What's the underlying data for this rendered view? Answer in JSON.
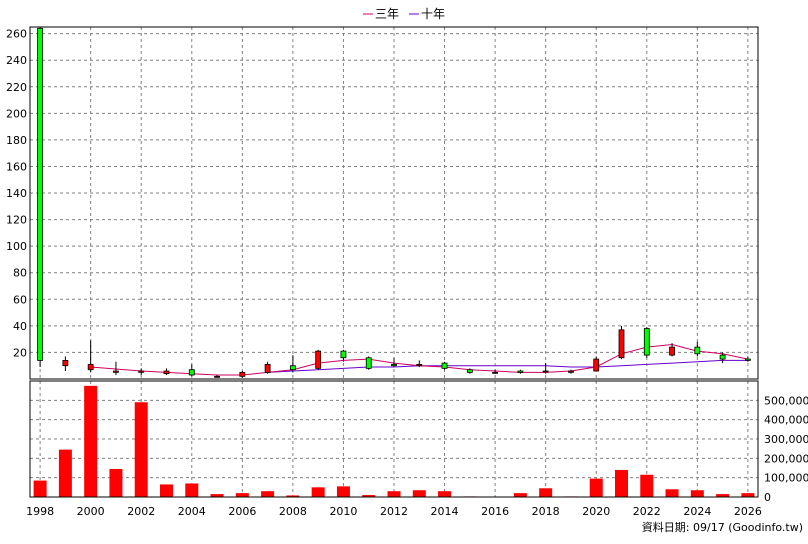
{
  "footer": "資料日期: 09/17  (Goodinfo.tw)",
  "chart_data": {
    "type": "candlestick+bar",
    "legend": [
      {
        "name": "三年",
        "color": "#cc0066"
      },
      {
        "name": "十年",
        "color": "#6600cc"
      }
    ],
    "x_ticks": [
      "1998",
      "2000",
      "2002",
      "2004",
      "2006",
      "2008",
      "2010",
      "2012",
      "2014",
      "2016",
      "2018",
      "2020",
      "2022",
      "2024",
      "2026"
    ],
    "price_axis": {
      "ylim": [
        0,
        265
      ],
      "ticks": [
        "20",
        "40",
        "60",
        "80",
        "100",
        "120",
        "140",
        "160",
        "180",
        "200",
        "220",
        "240",
        "260"
      ]
    },
    "volume_axis": {
      "ylim": [
        0,
        600000
      ],
      "ticks": [
        "0",
        "100,000",
        "200,000",
        "300,000",
        "400,000",
        "500,000"
      ]
    },
    "candles": [
      {
        "year": 1998,
        "open": 264,
        "close": 14,
        "high": 265,
        "low": 9
      },
      {
        "year": 1999,
        "open": 10,
        "close": 14,
        "high": 17,
        "low": 6
      },
      {
        "year": 2000,
        "open": 7,
        "close": 11,
        "high": 29,
        "low": 5
      },
      {
        "year": 2001,
        "open": 5,
        "close": 6,
        "high": 13,
        "low": 3
      },
      {
        "year": 2002,
        "open": 5,
        "close": 6,
        "high": 8,
        "low": 3
      },
      {
        "year": 2003,
        "open": 4,
        "close": 6,
        "high": 8,
        "low": 3
      },
      {
        "year": 2004,
        "open": 7,
        "close": 3,
        "high": 11,
        "low": 2
      },
      {
        "year": 2005,
        "open": 2,
        "close": 2,
        "high": 3,
        "low": 1
      },
      {
        "year": 2006,
        "open": 2,
        "close": 5,
        "high": 6,
        "low": 1
      },
      {
        "year": 2007,
        "open": 5,
        "close": 11,
        "high": 13,
        "low": 4
      },
      {
        "year": 2008,
        "open": 10,
        "close": 7,
        "high": 18,
        "low": 5
      },
      {
        "year": 2009,
        "open": 8,
        "close": 21,
        "high": 22,
        "low": 7
      },
      {
        "year": 2010,
        "open": 21,
        "close": 16,
        "high": 22,
        "low": 13
      },
      {
        "year": 2011,
        "open": 16,
        "close": 8,
        "high": 17,
        "low": 7
      },
      {
        "year": 2012,
        "open": 11,
        "close": 10,
        "high": 16,
        "low": 9
      },
      {
        "year": 2013,
        "open": 10,
        "close": 11,
        "high": 14,
        "low": 9
      },
      {
        "year": 2014,
        "open": 12,
        "close": 8,
        "high": 13,
        "low": 7
      },
      {
        "year": 2015,
        "open": 7,
        "close": 5,
        "high": 8,
        "low": 4
      },
      {
        "year": 2016,
        "open": 5,
        "close": 5,
        "high": 7,
        "low": 4
      },
      {
        "year": 2017,
        "open": 6,
        "close": 5,
        "high": 7,
        "low": 4
      },
      {
        "year": 2018,
        "open": 6,
        "close": 6,
        "high": 12,
        "low": 4
      },
      {
        "year": 2019,
        "open": 5,
        "close": 6,
        "high": 7,
        "low": 4
      },
      {
        "year": 2020,
        "open": 6,
        "close": 15,
        "high": 17,
        "low": 6
      },
      {
        "year": 2021,
        "open": 16,
        "close": 37,
        "high": 40,
        "low": 15
      },
      {
        "year": 2022,
        "open": 38,
        "close": 18,
        "high": 39,
        "low": 16
      },
      {
        "year": 2023,
        "open": 18,
        "close": 24,
        "high": 27,
        "low": 17
      },
      {
        "year": 2024,
        "open": 24,
        "close": 19,
        "high": 28,
        "low": 17
      },
      {
        "year": 2025,
        "open": 18,
        "close": 15,
        "high": 20,
        "low": 12
      },
      {
        "year": 2026,
        "open": 15,
        "close": 14,
        "high": 17,
        "low": 13
      }
    ],
    "ma3": [
      [
        2000,
        9
      ],
      [
        2002,
        6
      ],
      [
        2004,
        4
      ],
      [
        2005,
        3
      ],
      [
        2006,
        3
      ],
      [
        2007,
        5
      ],
      [
        2008,
        7
      ],
      [
        2009,
        12
      ],
      [
        2010,
        14
      ],
      [
        2011,
        15
      ],
      [
        2012,
        12
      ],
      [
        2013,
        10
      ],
      [
        2014,
        9
      ],
      [
        2015,
        7
      ],
      [
        2016,
        6
      ],
      [
        2017,
        5
      ],
      [
        2018,
        5
      ],
      [
        2019,
        6
      ],
      [
        2020,
        9
      ],
      [
        2021,
        19
      ],
      [
        2022,
        24
      ],
      [
        2023,
        26
      ],
      [
        2024,
        21
      ],
      [
        2025,
        19
      ],
      [
        2026,
        15
      ]
    ],
    "ma10": [
      [
        2007,
        5
      ],
      [
        2008,
        6
      ],
      [
        2009,
        7
      ],
      [
        2010,
        8
      ],
      [
        2011,
        9
      ],
      [
        2012,
        9
      ],
      [
        2013,
        10
      ],
      [
        2014,
        10
      ],
      [
        2015,
        10
      ],
      [
        2016,
        10
      ],
      [
        2017,
        10
      ],
      [
        2018,
        10
      ],
      [
        2019,
        9
      ],
      [
        2020,
        9
      ],
      [
        2021,
        10
      ],
      [
        2022,
        11
      ],
      [
        2023,
        12
      ],
      [
        2024,
        13
      ],
      [
        2025,
        14
      ],
      [
        2026,
        14
      ]
    ],
    "volume": [
      {
        "year": 1998,
        "value": 85000
      },
      {
        "year": 1999,
        "value": 245000
      },
      {
        "year": 2000,
        "value": 575000
      },
      {
        "year": 2001,
        "value": 145000
      },
      {
        "year": 2002,
        "value": 490000
      },
      {
        "year": 2003,
        "value": 65000
      },
      {
        "year": 2004,
        "value": 70000
      },
      {
        "year": 2005,
        "value": 15000
      },
      {
        "year": 2006,
        "value": 20000
      },
      {
        "year": 2007,
        "value": 30000
      },
      {
        "year": 2008,
        "value": 8000
      },
      {
        "year": 2009,
        "value": 50000
      },
      {
        "year": 2010,
        "value": 55000
      },
      {
        "year": 2011,
        "value": 10000
      },
      {
        "year": 2012,
        "value": 30000
      },
      {
        "year": 2013,
        "value": 35000
      },
      {
        "year": 2014,
        "value": 30000
      },
      {
        "year": 2015,
        "value": 3000
      },
      {
        "year": 2016,
        "value": 2000
      },
      {
        "year": 2017,
        "value": 20000
      },
      {
        "year": 2018,
        "value": 45000
      },
      {
        "year": 2019,
        "value": 3000
      },
      {
        "year": 2020,
        "value": 95000
      },
      {
        "year": 2021,
        "value": 140000
      },
      {
        "year": 2022,
        "value": 115000
      },
      {
        "year": 2023,
        "value": 40000
      },
      {
        "year": 2024,
        "value": 35000
      },
      {
        "year": 2025,
        "value": 15000
      },
      {
        "year": 2026,
        "value": 20000
      }
    ],
    "colors": {
      "up": "#ff0000",
      "down": "#00ff00",
      "volume": "#ff0000",
      "grid": "#808080"
    },
    "grid": true,
    "legend_position": "top-center"
  }
}
